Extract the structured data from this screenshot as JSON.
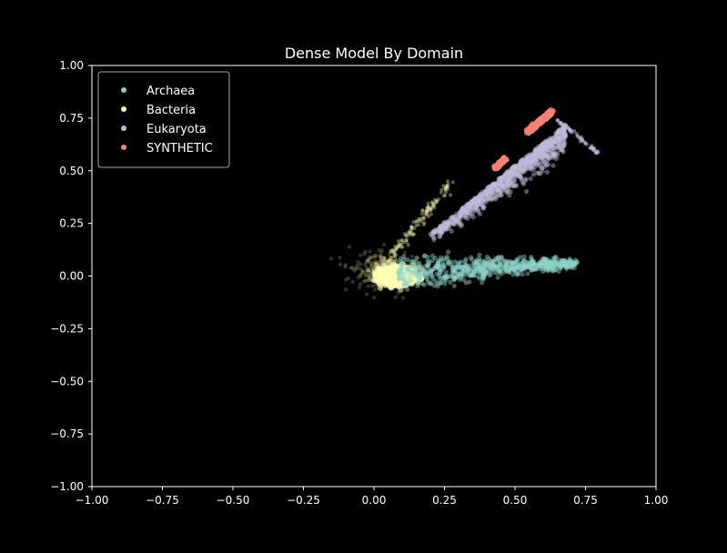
{
  "chart_data": {
    "type": "scatter",
    "title": "Dense Model By Domain",
    "xlabel": "",
    "ylabel": "",
    "xlim": [
      -1.0,
      1.0
    ],
    "ylim": [
      -1.0,
      1.0
    ],
    "x_ticks": [
      -1.0,
      -0.75,
      -0.5,
      -0.25,
      0.0,
      0.25,
      0.5,
      0.75,
      1.0
    ],
    "y_ticks": [
      -1.0,
      -0.75,
      -0.5,
      -0.25,
      0.0,
      0.25,
      0.5,
      0.75,
      1.0
    ],
    "x_tick_labels": [
      "−1.00",
      "−0.75",
      "−0.50",
      "−0.25",
      "0.00",
      "0.25",
      "0.50",
      "0.75",
      "1.00"
    ],
    "y_tick_labels": [
      "−1.00",
      "−0.75",
      "−0.50",
      "−0.25",
      "0.00",
      "0.25",
      "0.50",
      "0.75",
      "1.00"
    ],
    "grid": false,
    "legend_position": "top-left",
    "background": "#000000",
    "series": [
      {
        "name": "Archaea",
        "color": "#8dd3c7",
        "shape": "fan",
        "origin": [
          0.0,
          0.02
        ],
        "tip": [
          0.72,
          0.06
        ],
        "spread": 0.07,
        "x": [
          0.25,
          0.35,
          0.45,
          0.55,
          0.65,
          0.72
        ],
        "y": [
          0.06,
          0.05,
          0.04,
          0.04,
          0.05,
          0.06
        ]
      },
      {
        "name": "Bacteria",
        "color": "#ffffb3",
        "shape": "blob",
        "center": [
          0.06,
          0.0
        ],
        "x": [
          -0.1,
          0.0,
          0.05,
          0.1,
          0.2,
          0.28
        ],
        "y": [
          0.02,
          0.05,
          -0.05,
          0.08,
          0.12,
          0.45
        ]
      },
      {
        "name": "Eukaryota",
        "color": "#bebada",
        "shape": "fan",
        "origin": [
          0.2,
          0.2
        ],
        "tip": [
          0.68,
          0.72
        ],
        "spread": 0.08,
        "x": [
          0.3,
          0.4,
          0.5,
          0.6,
          0.68,
          0.8
        ],
        "y": [
          0.28,
          0.38,
          0.5,
          0.65,
          0.72,
          0.58
        ]
      },
      {
        "name": "SYNTHETIC",
        "color": "#fb8072",
        "shape": "clusters",
        "x": [
          0.435,
          0.445,
          0.455,
          0.55,
          0.575,
          0.6,
          0.625
        ],
        "y": [
          0.52,
          0.53,
          0.55,
          0.69,
          0.72,
          0.75,
          0.78
        ]
      }
    ]
  }
}
